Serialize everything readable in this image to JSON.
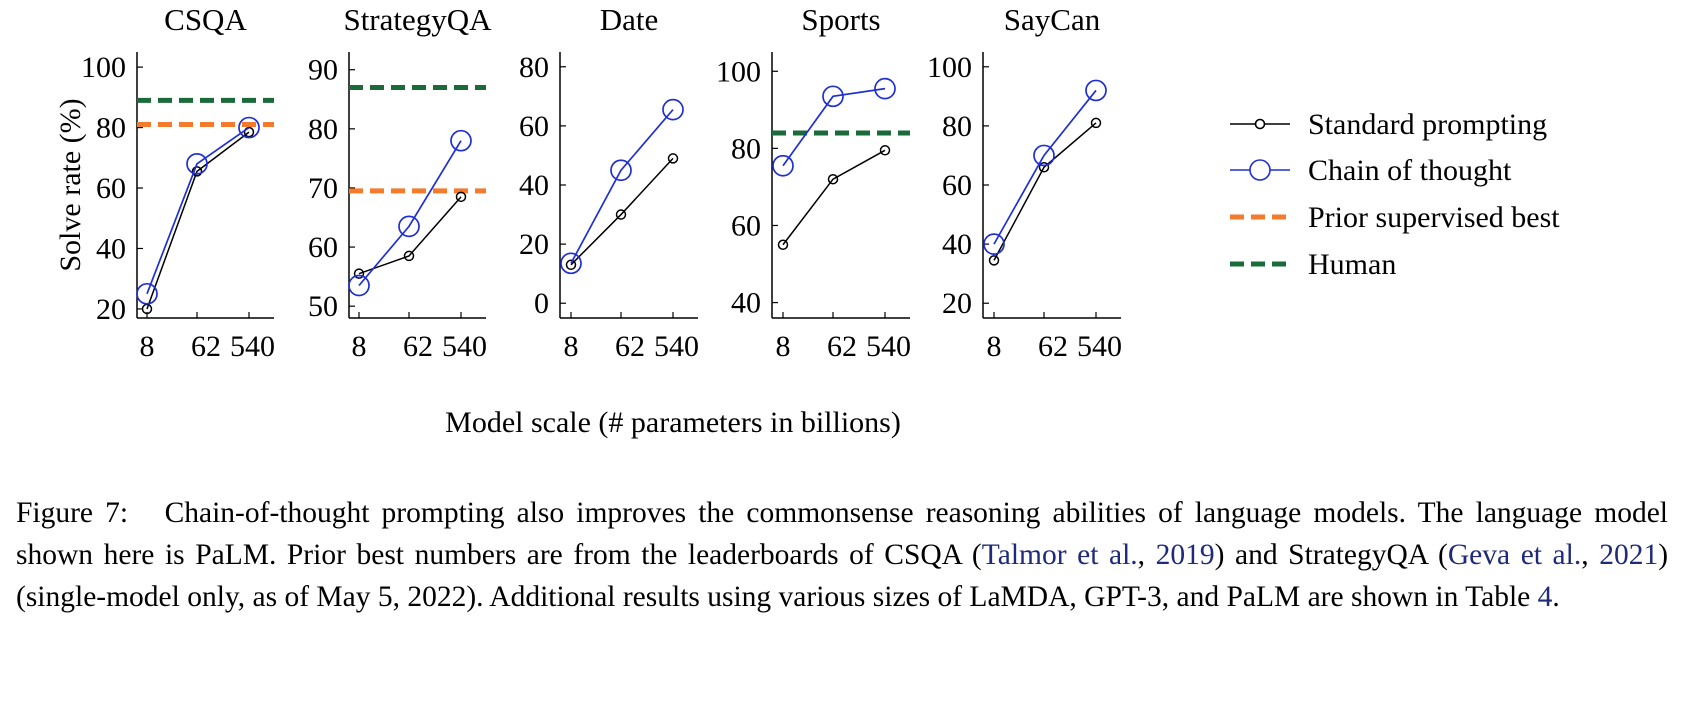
{
  "chart_data": {
    "type": "line",
    "x_categories": [
      "8",
      "62",
      "540"
    ],
    "xlabel": "Model scale (# parameters in billions)",
    "ylabel": "Solve rate (%)",
    "grid": false,
    "legend_placement": "right",
    "series_styles": [
      {
        "key": "standard",
        "name": "Standard prompting",
        "color": "#000000",
        "marker": "small-open-circle"
      },
      {
        "key": "cot",
        "name": "Chain of thought",
        "color": "#1f2fd1",
        "marker": "large-open-circle"
      },
      {
        "key": "prior",
        "name": "Prior supervised best",
        "color": "#f47a2c",
        "style": "dashed"
      },
      {
        "key": "human",
        "name": "Human",
        "color": "#1a6a3a",
        "style": "dashed"
      }
    ],
    "panels": [
      {
        "title": "CSQA",
        "ylim": [
          17,
          105
        ],
        "yticks": [
          20,
          40,
          60,
          80,
          100
        ],
        "standard": [
          20,
          65.5,
          78.5
        ],
        "cot": [
          25,
          68,
          80
        ],
        "prior": 81,
        "human": 89
      },
      {
        "title": "StrategyQA",
        "ylim": [
          48,
          93
        ],
        "yticks": [
          50,
          60,
          70,
          80,
          90
        ],
        "standard": [
          55.5,
          58.5,
          68.5
        ],
        "cot": [
          53.5,
          63.5,
          78
        ],
        "prior": 69.5,
        "human": 87
      },
      {
        "title": "Date",
        "ylim": [
          -5,
          85
        ],
        "yticks": [
          0,
          20,
          40,
          60,
          80
        ],
        "standard": [
          13,
          30,
          49
        ],
        "cot": [
          13.5,
          45,
          65.5
        ],
        "prior": null,
        "human": null
      },
      {
        "title": "Sports",
        "ylim": [
          36,
          105
        ],
        "yticks": [
          40,
          60,
          80,
          100
        ],
        "standard": [
          55,
          72,
          79.5
        ],
        "cot": [
          75.5,
          93.5,
          95.5
        ],
        "prior": null,
        "human": 84
      },
      {
        "title": "SayCan",
        "ylim": [
          15,
          105
        ],
        "yticks": [
          20,
          40,
          60,
          80,
          100
        ],
        "standard": [
          34.5,
          66,
          81
        ],
        "cot": [
          40,
          70,
          92
        ],
        "prior": null,
        "human": null
      }
    ]
  },
  "caption": {
    "label": "Figure 7:",
    "p1": "Chain-of-thought prompting also improves the commonsense reasoning abilities of language models. The language model shown here is PaLM. Prior best numbers are from the leaderboards of CSQA (",
    "cite1_author": "Talmor et al.",
    "p2": ", ",
    "cite1_year": "2019",
    "p3": ") and StrategyQA (",
    "cite2_author": "Geva et al.",
    "p4": ", ",
    "cite2_year": "2021",
    "p5": ") (single-model only, as of May 5, 2022). Additional results using various sizes of LaMDA, GPT-3, and PaLM are shown in Table ",
    "table_ref": "4",
    "p6": "."
  }
}
